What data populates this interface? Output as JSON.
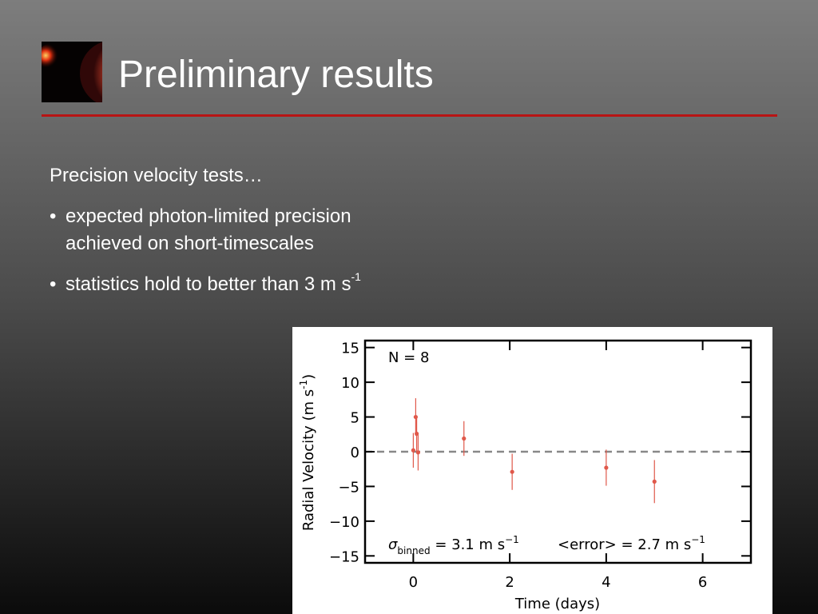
{
  "slide": {
    "title": "Preliminary results",
    "intro": "Precision velocity tests…",
    "bullets": [
      {
        "text": "expected photon-limited precision achieved on short-timescales"
      },
      {
        "text": "statistics hold to better than 3 m s",
        "sup": "-1"
      }
    ]
  },
  "chart_data": {
    "type": "scatter",
    "x": [
      0.0,
      0.05,
      0.07,
      0.1,
      1.05,
      2.05,
      4.0,
      5.0
    ],
    "values": [
      0.2,
      5.0,
      2.6,
      -0.1,
      1.9,
      -2.9,
      -2.3,
      -4.3
    ],
    "errors": [
      2.5,
      2.7,
      2.6,
      2.6,
      2.5,
      2.6,
      2.6,
      3.1
    ],
    "color": "#e0584a",
    "xlim": [
      -1,
      7
    ],
    "ylim": [
      -16,
      16
    ],
    "xticks": [
      0,
      2,
      4,
      6
    ],
    "yticks": [
      {
        "value": -15,
        "label": "−15"
      },
      {
        "value": -10,
        "label": "−10"
      },
      {
        "value": -5,
        "label": "−5"
      },
      0,
      5,
      10,
      15
    ],
    "hline": 0,
    "x_label": "Time (days)",
    "y_label": {
      "text": "Radial Velocity (m s",
      "sup": "-1",
      "tail": ")"
    },
    "annotations": {
      "n": "N = 8",
      "sigma": {
        "sym": "σ",
        "sub": "binned",
        "text": " = 3.1 m s",
        "sup": "−1"
      },
      "error": {
        "text": "<error> = 2.7 m s",
        "sup": "−1"
      }
    }
  }
}
